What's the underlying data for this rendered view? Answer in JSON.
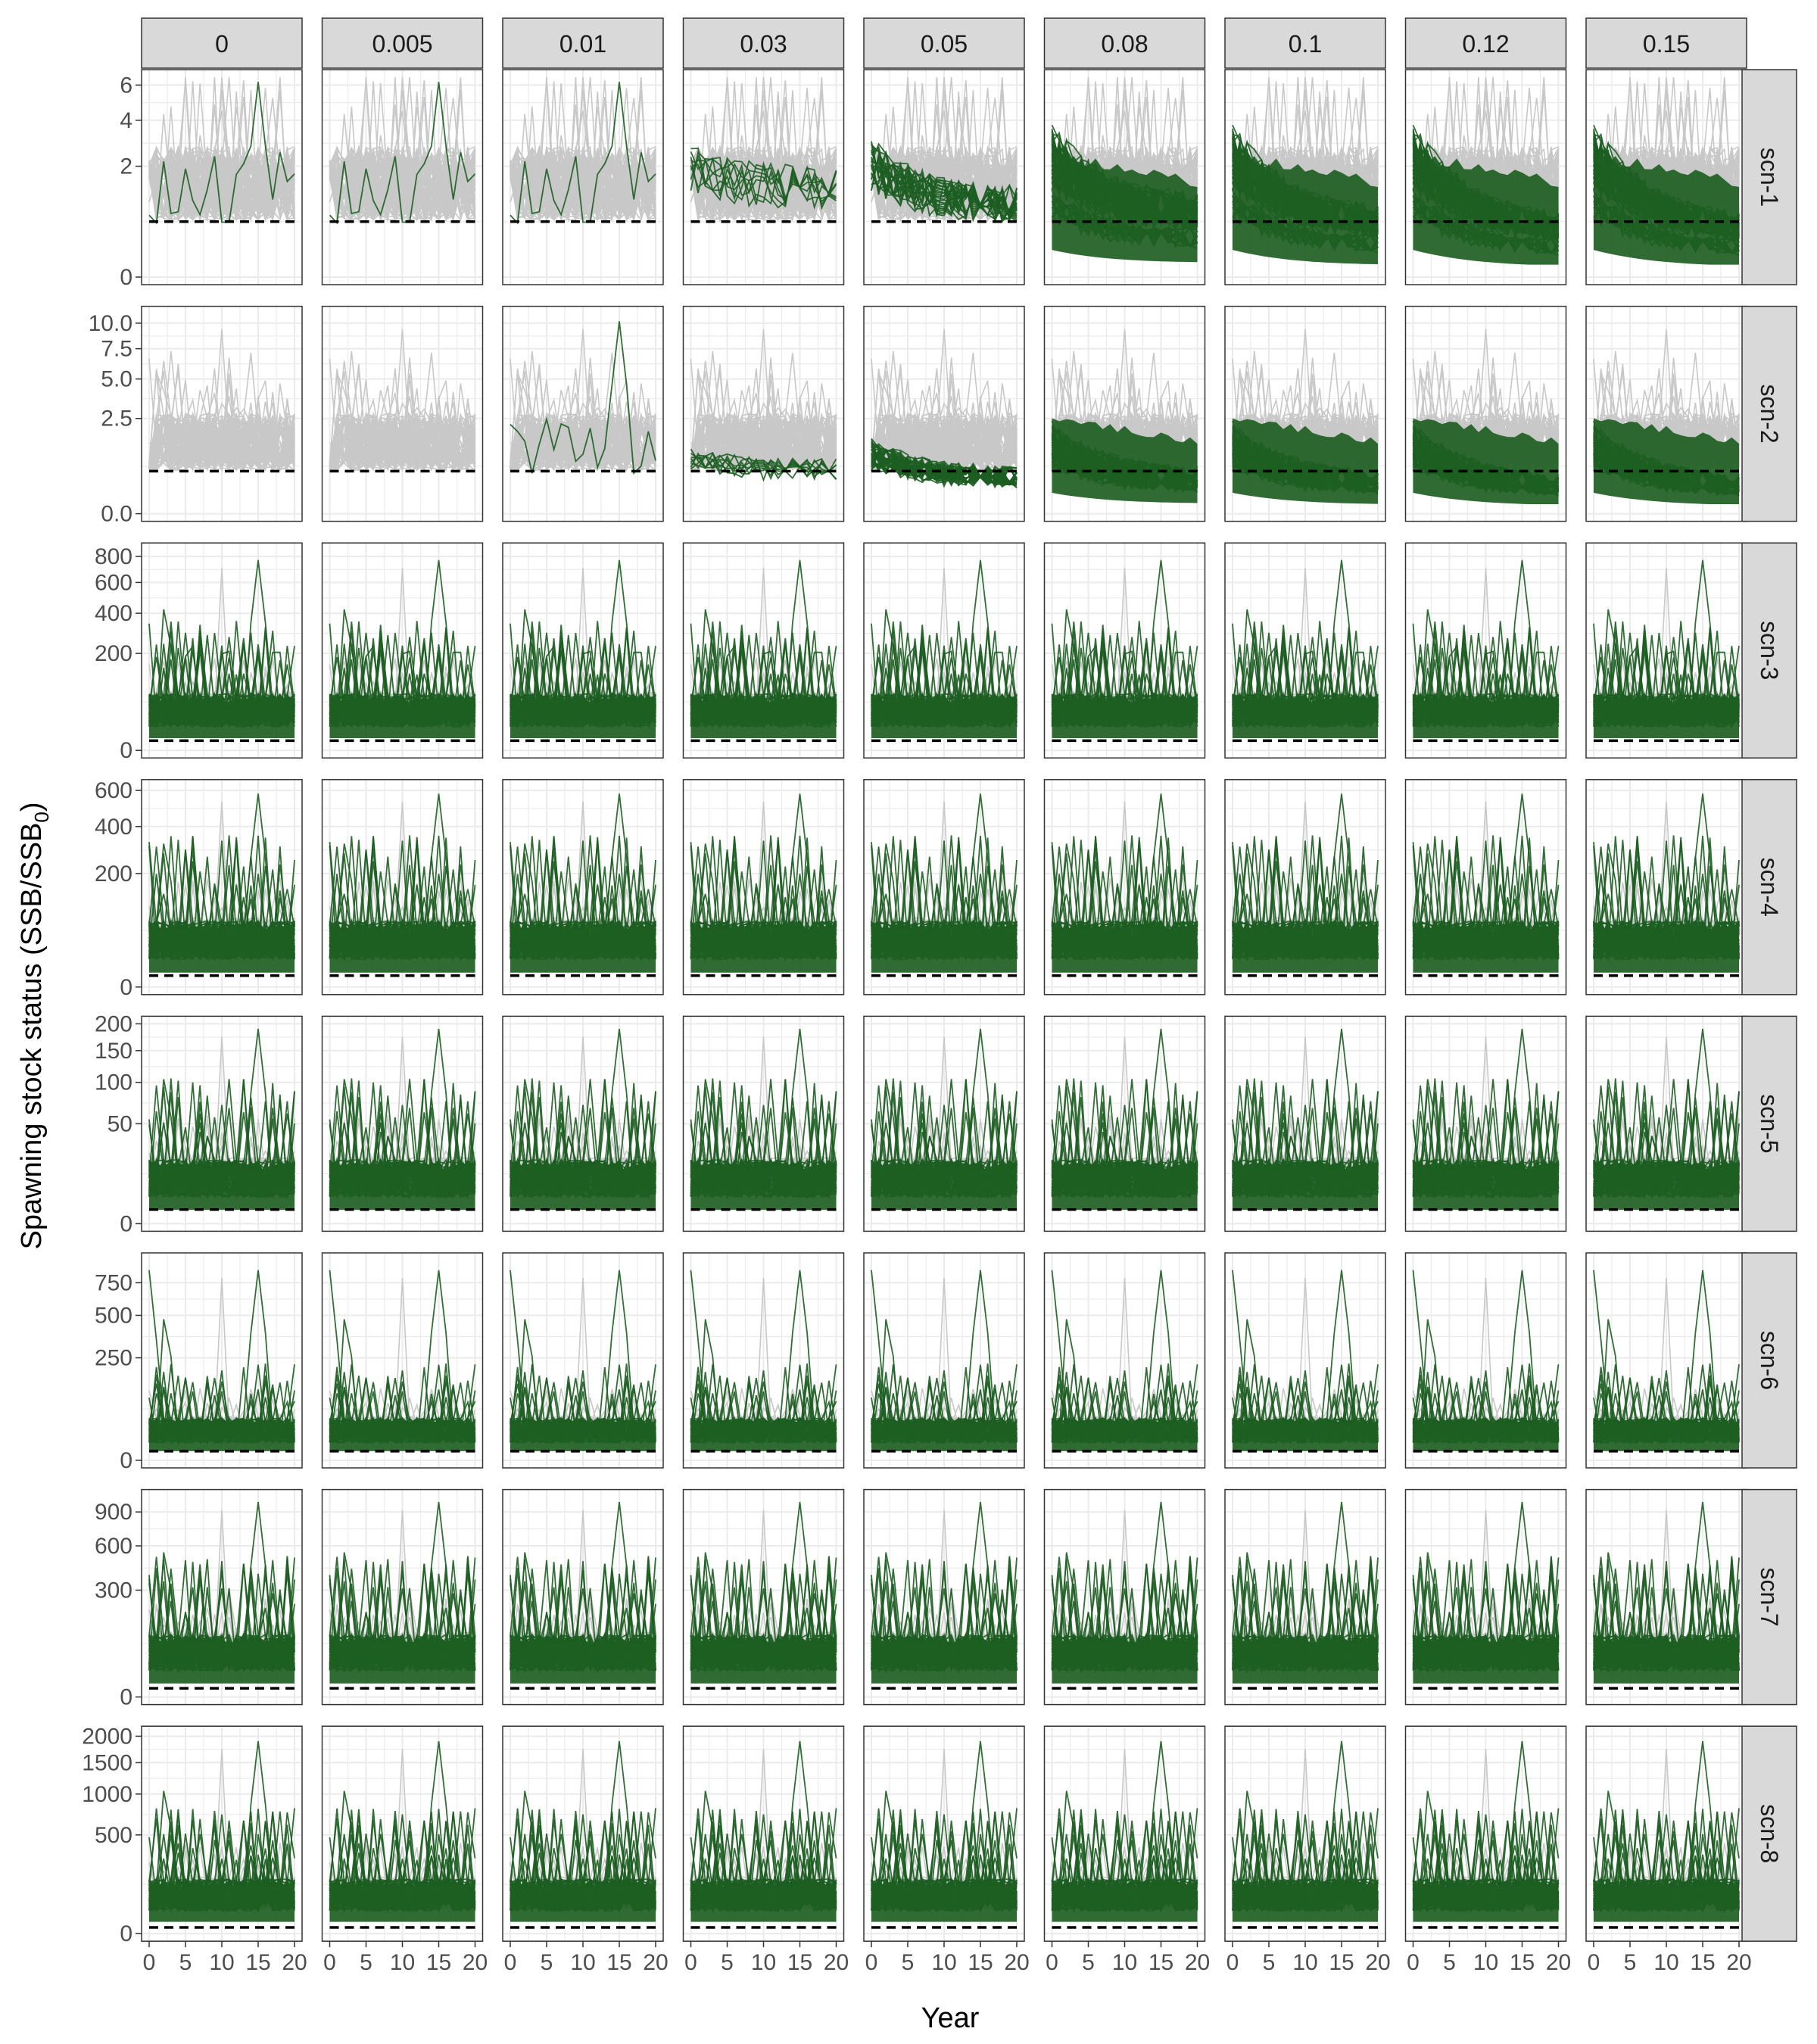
{
  "figure": {
    "xlabel": "Year",
    "ylabel_main": "Spawning stock status (SSB/SSB",
    "ylabel_sub": "0",
    "ylabel_close": ")"
  },
  "legend_colors": {
    "background_series": "#c8c8c8",
    "highlighted_series": "#1d5e22",
    "reference_line": "#000000",
    "strip_fill": "#d9d9d9",
    "grid": "#ebebeb"
  },
  "chart_data": {
    "type": "line",
    "facet_columns": [
      "0",
      "0.005",
      "0.01",
      "0.03",
      "0.05",
      "0.08",
      "0.1",
      "0.12",
      "0.15"
    ],
    "facet_rows": [
      "scn-1",
      "scn-2",
      "scn-3",
      "scn-4",
      "scn-5",
      "scn-6",
      "scn-7",
      "scn-8"
    ],
    "x": {
      "label": "Year",
      "range": [
        0,
        20
      ],
      "ticks": [
        0,
        5,
        10,
        15,
        20
      ]
    },
    "y_scale": "sqrt",
    "rows": [
      {
        "name": "scn-1",
        "yticks": [
          0,
          2,
          4,
          6
        ],
        "ymax": 6.5,
        "ref_line": 0.5,
        "typical_level": 1.5,
        "peak": 6.2,
        "highlighted_counts": [
          1,
          1,
          1,
          8,
          25,
          200,
          400,
          400,
          400
        ],
        "decline_fraction": [
          0,
          0,
          0,
          0.4,
          0.7,
          0.85,
          0.95,
          1,
          1
        ]
      },
      {
        "name": "scn-2",
        "yticks": [
          0.0,
          2.5,
          5.0,
          7.5,
          10.0
        ],
        "ymax": 11,
        "ref_line": 0.5,
        "typical_level": 1.5,
        "peak": 10.2,
        "highlighted_counts": [
          0,
          0,
          1,
          8,
          40,
          300,
          400,
          400,
          400
        ],
        "decline_fraction": [
          0,
          0,
          0,
          0.4,
          0.75,
          0.9,
          0.95,
          1,
          1
        ]
      },
      {
        "name": "scn-3",
        "yticks": [
          0,
          200,
          400,
          600,
          800
        ],
        "ymax": 850,
        "ref_line": 2,
        "typical_level": 40,
        "peak": 770,
        "highlighted_counts": [
          300,
          300,
          300,
          300,
          300,
          300,
          300,
          300,
          300
        ],
        "decline_fraction": [
          0,
          0,
          0,
          0,
          0,
          0,
          0,
          0,
          0
        ]
      },
      {
        "name": "scn-4",
        "yticks": [
          0,
          200,
          400,
          600
        ],
        "ymax": 620,
        "ref_line": 2,
        "typical_level": 40,
        "peak": 580,
        "highlighted_counts": [
          300,
          300,
          300,
          300,
          300,
          300,
          300,
          300,
          300
        ],
        "decline_fraction": [
          0,
          0,
          0,
          0,
          0,
          0,
          0,
          0,
          0
        ]
      },
      {
        "name": "scn-5",
        "yticks": [
          0,
          50,
          100,
          150,
          200
        ],
        "ymax": 200,
        "ref_line": 1,
        "typical_level": 12,
        "peak": 190,
        "highlighted_counts": [
          300,
          300,
          300,
          300,
          300,
          300,
          300,
          300,
          300
        ],
        "decline_fraction": [
          0,
          0,
          0,
          0,
          0,
          0,
          0,
          0,
          0
        ]
      },
      {
        "name": "scn-6",
        "yticks": [
          0,
          250,
          500,
          750
        ],
        "ymax": 950,
        "ref_line": 2,
        "typical_level": 25,
        "peak": 860,
        "highlighted_counts": [
          300,
          300,
          300,
          300,
          300,
          300,
          300,
          300,
          300
        ],
        "decline_fraction": [
          0,
          0,
          0,
          0,
          0,
          0,
          0,
          0,
          0
        ]
      },
      {
        "name": "scn-7",
        "yticks": [
          0,
          300,
          600,
          900
        ],
        "ymax": 1050,
        "ref_line": 2,
        "typical_level": 60,
        "peak": 1000,
        "highlighted_counts": [
          300,
          300,
          300,
          300,
          300,
          300,
          300,
          300,
          300
        ],
        "decline_fraction": [
          0,
          0,
          0,
          0,
          0,
          0,
          0,
          0,
          0
        ]
      },
      {
        "name": "scn-8",
        "yticks": [
          0,
          500,
          1000,
          1500,
          2000
        ],
        "ymax": 2050,
        "ref_line": 2,
        "typical_level": 90,
        "peak": 1900,
        "highlighted_counts": [
          300,
          300,
          300,
          300,
          300,
          300,
          300,
          300,
          300
        ],
        "decline_fraction": [
          0,
          0,
          0,
          0,
          0,
          0,
          0,
          0,
          0
        ]
      }
    ]
  }
}
